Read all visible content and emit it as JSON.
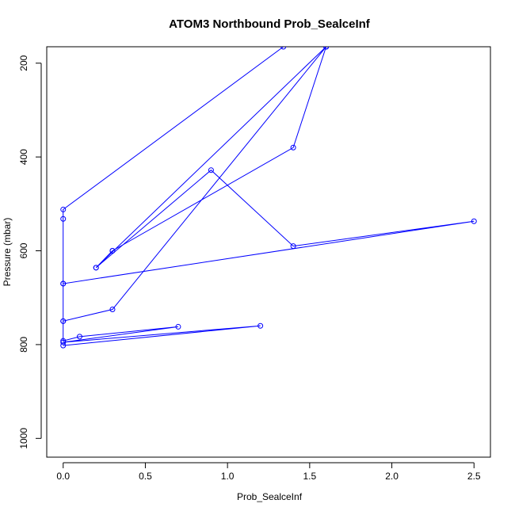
{
  "chart_data": {
    "type": "line",
    "title": "ATOM3 Northbound Prob_SealceInf",
    "xlabel": "Prob_SealceInf",
    "ylabel": "Pressure (mbar)",
    "xlim": [
      -0.1,
      2.6
    ],
    "ylim": [
      1040,
      165
    ],
    "y_axis_inverted": true,
    "x_ticks": [
      0,
      0.5,
      1,
      1.5,
      2,
      2.5
    ],
    "x_tick_labels": [
      "0.0",
      "0.5",
      "1.0",
      "1.5",
      "2.0",
      "2.5"
    ],
    "y_ticks": [
      200,
      400,
      600,
      800,
      1000
    ],
    "y_tick_labels": [
      "200",
      "400",
      "600",
      "800",
      "1000"
    ],
    "grid": false,
    "legend": "none",
    "color": "#0000ff",
    "series": [
      {
        "points": [
          {
            "x": 0.0,
            "y": 802
          },
          {
            "x": 1.2,
            "y": 760
          },
          {
            "x": 0.0,
            "y": 795
          },
          {
            "x": 0.7,
            "y": 762
          },
          {
            "x": 0.1,
            "y": 783
          },
          {
            "x": 0.0,
            "y": 792
          },
          {
            "x": 0.0,
            "y": 750
          },
          {
            "x": 0.3,
            "y": 725
          },
          {
            "x": 1.6,
            "y": 165
          }
        ]
      },
      {
        "points": [
          {
            "x": 0.0,
            "y": 750
          },
          {
            "x": 0.0,
            "y": 670
          },
          {
            "x": 2.5,
            "y": 537
          },
          {
            "x": 1.4,
            "y": 590
          },
          {
            "x": 0.9,
            "y": 428
          },
          {
            "x": 0.2,
            "y": 636
          },
          {
            "x": 1.6,
            "y": 165
          }
        ]
      },
      {
        "points": [
          {
            "x": 0.0,
            "y": 670
          },
          {
            "x": 0.0,
            "y": 532
          },
          {
            "x": 0.0,
            "y": 512
          },
          {
            "x": 1.34,
            "y": 165
          }
        ]
      },
      {
        "points": [
          {
            "x": 0.3,
            "y": 600
          },
          {
            "x": 1.4,
            "y": 380
          },
          {
            "x": 1.6,
            "y": 165
          }
        ]
      },
      {
        "points": [
          {
            "x": 0.3,
            "y": 600
          },
          {
            "x": 0.2,
            "y": 636
          }
        ]
      }
    ]
  }
}
